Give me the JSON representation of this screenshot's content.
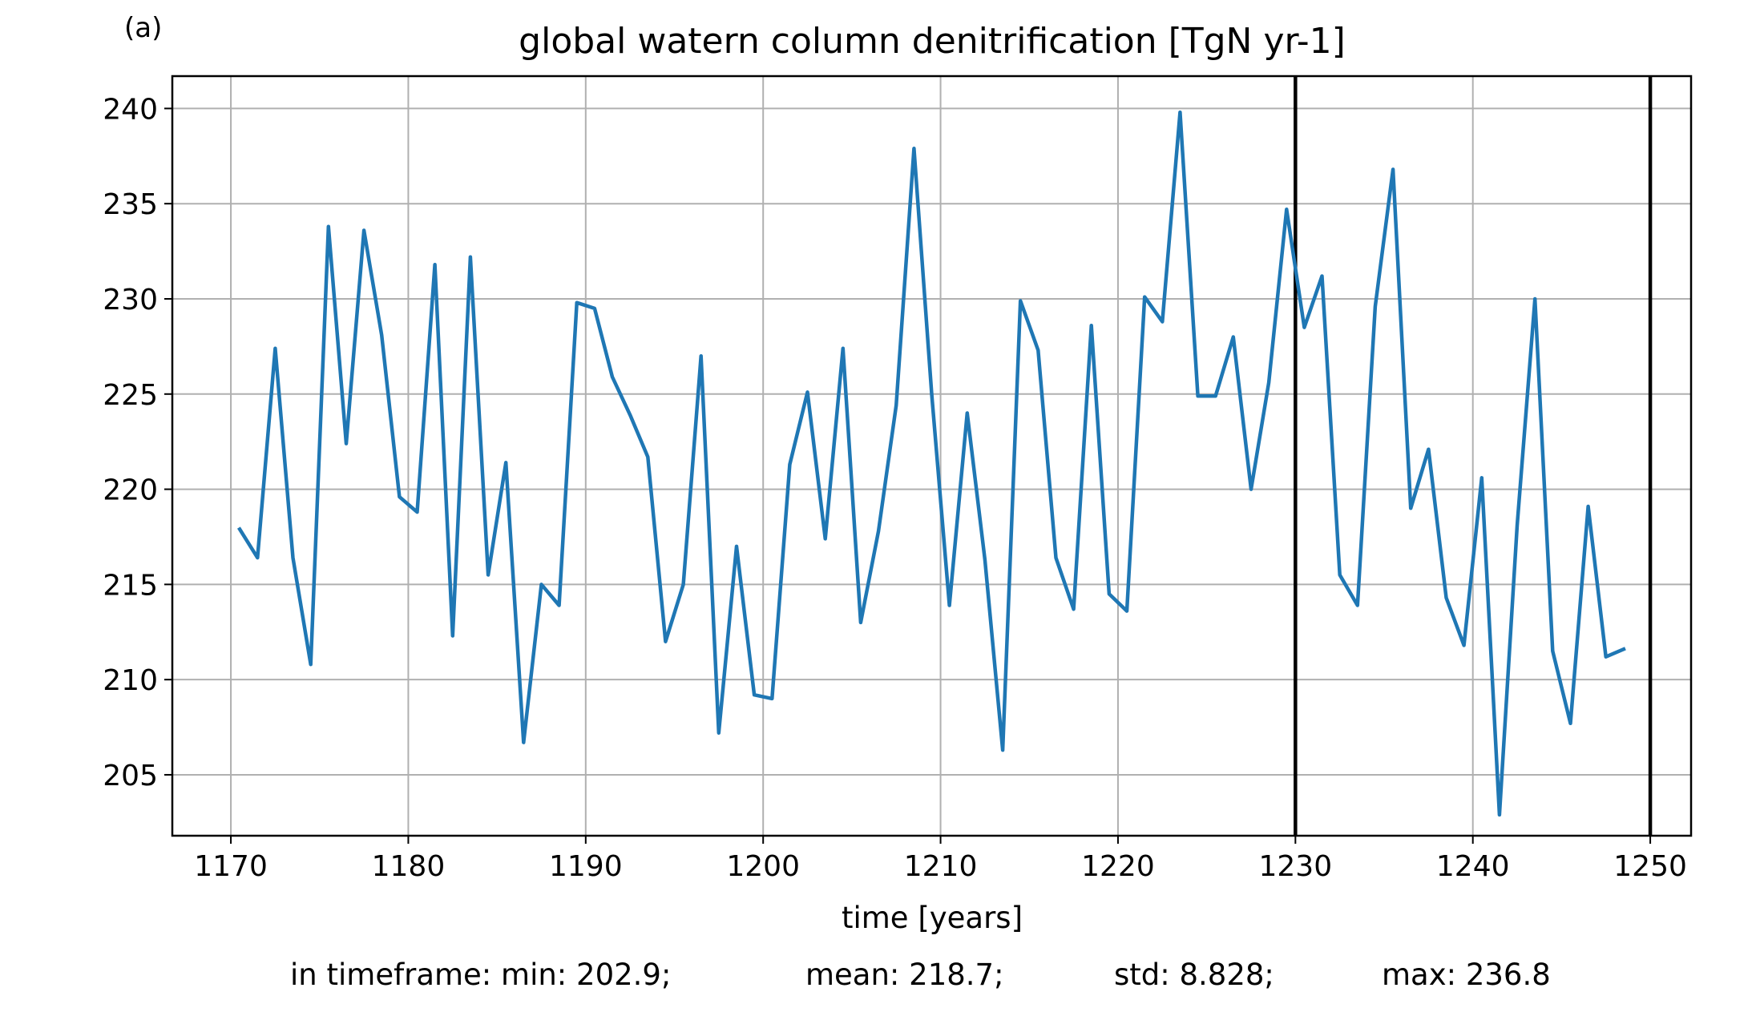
{
  "panel_label": "(a)",
  "footer": {
    "prefix": "in timeframe: min: 202.9;",
    "mean": "mean: 218.7;",
    "std": "std: 8.828;",
    "max": "max: 236.8"
  },
  "colors": {
    "series": "#1f77b4",
    "grid": "#b0b0b0",
    "vline": "#000000"
  },
  "chart_data": {
    "type": "line",
    "title": "global watern column denitrification [TgN yr-1]",
    "xlabel": "time [years]",
    "ylabel": "",
    "xlim": [
      1166.7,
      1252.3
    ],
    "ylim": [
      201.8,
      241.7
    ],
    "xticks": [
      1170,
      1180,
      1190,
      1200,
      1210,
      1220,
      1230,
      1240,
      1250
    ],
    "yticks": [
      205,
      210,
      215,
      220,
      225,
      230,
      235,
      240
    ],
    "grid": true,
    "vlines": [
      1230,
      1250
    ],
    "series": [
      {
        "x": [
          1170.5,
          1171.5,
          1172.5,
          1173.5,
          1174.5,
          1175.5,
          1176.5,
          1177.5,
          1178.5,
          1179.5,
          1180.5,
          1181.5,
          1182.5,
          1183.5,
          1184.5,
          1185.5,
          1186.5,
          1187.5,
          1188.5,
          1189.5,
          1190.5,
          1191.5,
          1192.5,
          1193.5,
          1194.5,
          1195.5,
          1196.5,
          1197.5,
          1198.5,
          1199.5,
          1200.5,
          1201.5,
          1202.5,
          1203.5,
          1204.5,
          1205.5,
          1206.5,
          1207.5,
          1208.5,
          1209.5,
          1210.5,
          1211.5,
          1212.5,
          1213.5,
          1214.5,
          1215.5,
          1216.5,
          1217.5,
          1218.5,
          1219.5,
          1220.5,
          1221.5,
          1222.5,
          1223.5,
          1224.5,
          1225.5,
          1226.5,
          1227.5,
          1228.5,
          1229.5,
          1230.5,
          1231.5,
          1232.5,
          1233.5,
          1234.5,
          1235.5,
          1236.5,
          1237.5,
          1238.5,
          1239.5,
          1240.5,
          1241.5,
          1242.5,
          1243.5,
          1244.5,
          1245.5,
          1246.5,
          1247.5,
          1248.5
        ],
        "values": [
          217.9,
          216.4,
          227.4,
          216.4,
          210.8,
          233.8,
          222.4,
          233.6,
          228.1,
          219.6,
          218.8,
          231.8,
          212.3,
          232.2,
          215.5,
          221.4,
          206.7,
          215.0,
          213.9,
          229.8,
          229.5,
          225.9,
          223.9,
          221.7,
          212.0,
          215.0,
          227.0,
          207.2,
          217.0,
          209.2,
          209.0,
          221.3,
          225.1,
          217.4,
          227.4,
          213.0,
          217.8,
          224.4,
          237.9,
          225.0,
          213.9,
          224.0,
          216.3,
          206.3,
          229.9,
          227.3,
          216.4,
          213.7,
          228.6,
          214.5,
          213.6,
          230.1,
          228.8,
          239.8,
          224.9,
          224.9,
          228.0,
          220.0,
          225.6,
          234.7,
          228.5,
          231.2,
          215.5,
          213.9,
          229.6,
          236.8,
          219.0,
          222.1,
          214.3,
          211.8,
          220.6,
          202.9,
          218.1,
          230.0,
          211.5,
          207.7,
          219.1,
          211.2,
          211.6
        ]
      }
    ]
  }
}
